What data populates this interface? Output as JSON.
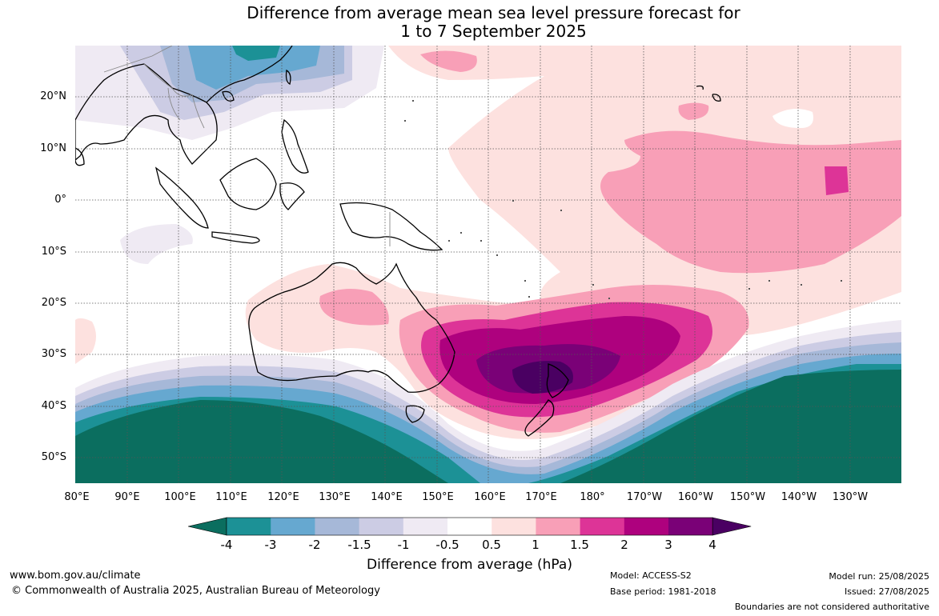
{
  "title": {
    "line1": "Difference from average mean sea level pressure forecast for",
    "line2": "1 to 7 September 2025"
  },
  "map": {
    "lat_labels": [
      "20°N",
      "10°N",
      "0°",
      "10°S",
      "20°S",
      "30°S",
      "40°S",
      "50°S"
    ],
    "lon_labels": [
      "80°E",
      "90°E",
      "100°E",
      "110°E",
      "120°E",
      "130°E",
      "140°E",
      "150°E",
      "160°E",
      "170°E",
      "180°",
      "170°W",
      "160°W",
      "150°W",
      "140°W",
      "130°W"
    ]
  },
  "colorbar": {
    "ticks": [
      "-4",
      "-3",
      "-2",
      "-1.5",
      "-1",
      "-0.5",
      "0.5",
      "1",
      "1.5",
      "2",
      "3",
      "4"
    ],
    "colors": [
      "#0b6e5f",
      "#1c9196",
      "#66a8d0",
      "#a6b8d8",
      "#ccccE4",
      "#efeaf3",
      "#ffffff",
      "#fde1df",
      "#f89fb7",
      "#dd3497",
      "#ae017e",
      "#7a0177",
      "#4a0062"
    ],
    "label": "Difference from average (hPa)"
  },
  "footer": {
    "url": "www.bom.gov.au/climate",
    "copyright": "© Commonwealth of Australia 2025, Australian Bureau of Meteorology",
    "model": "Model: ACCESS-S2",
    "base_period": "Base period: 1981-2018",
    "model_run": "Model run: 25/08/2025",
    "issued": "Issued: 27/08/2025",
    "boundaries": "Boundaries are not considered authoritative"
  }
}
